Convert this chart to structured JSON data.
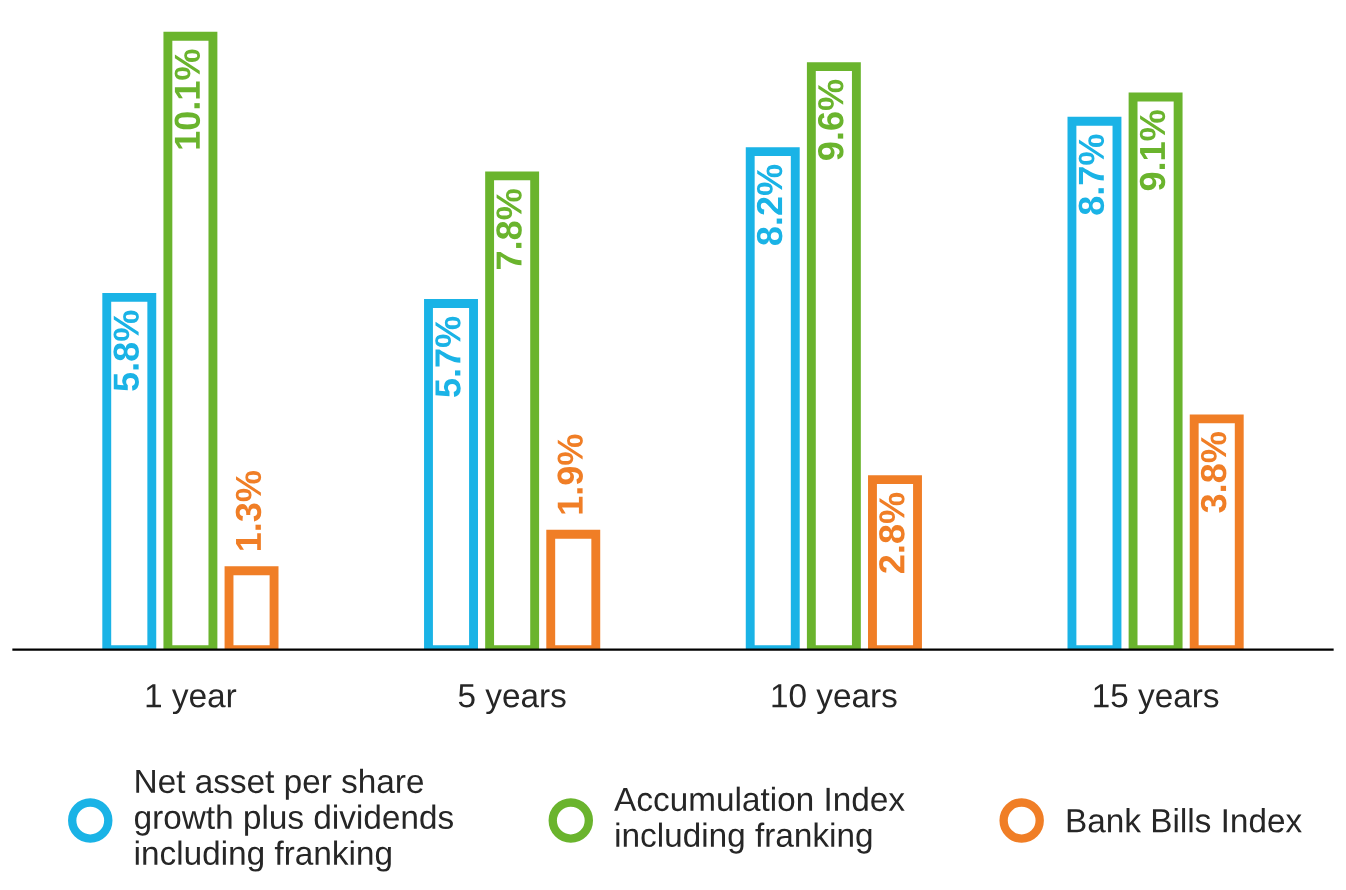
{
  "chart_data": {
    "type": "bar",
    "categories": [
      "1 year",
      "5 years",
      "10 years",
      "15 years"
    ],
    "series": [
      {
        "name": "Net asset per share\ngrowth plus dividends\nincluding franking",
        "color": "#1ab3e6",
        "values": [
          5.8,
          5.7,
          8.2,
          8.7
        ],
        "value_labels": [
          "5.8%",
          "5.7%",
          "8.2%",
          "8.7%"
        ]
      },
      {
        "name": "Accumulation Index\nincluding franking",
        "color": "#6ab42d",
        "values": [
          10.1,
          7.8,
          9.6,
          9.1
        ],
        "value_labels": [
          "10.1%",
          "7.8%",
          "9.6%",
          "9.1%"
        ]
      },
      {
        "name": "Bank Bills Index",
        "color": "#f07e26",
        "values": [
          1.3,
          1.9,
          2.8,
          3.8
        ],
        "value_labels": [
          "1.3%",
          "1.9%",
          "2.8%",
          "3.8%"
        ]
      }
    ],
    "legend": "bottom"
  }
}
